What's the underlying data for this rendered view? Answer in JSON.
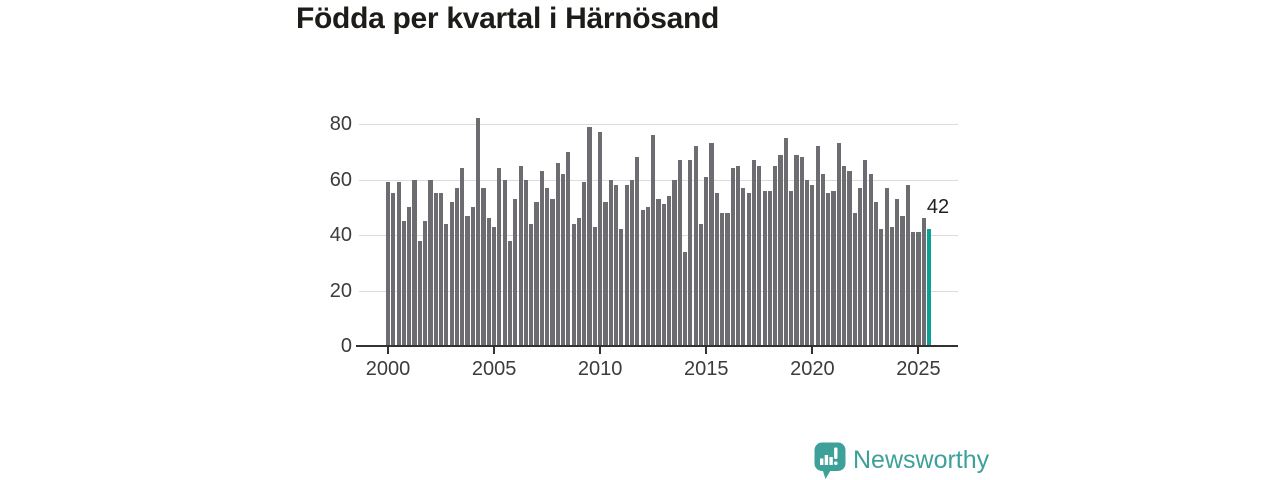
{
  "title": "Födda per kvartal i Härnösand",
  "logo": {
    "text": "Newsworthy",
    "icon": "newsworthy-speech-bubble-bar-chart-icon",
    "color": "#3da19a"
  },
  "colors": {
    "background": "#ffffff",
    "bar": "#6c6c71",
    "highlight": "#0aa296",
    "grid": "#dcdcdc",
    "axis": "#33322e",
    "tick_text": "#3c3c3c",
    "title_text": "#1d1c18"
  },
  "chart_data": {
    "type": "bar",
    "title": "Födda per kvartal i Härnösand",
    "x_range": "2000Q1–2025Q3",
    "frequency": "quarterly",
    "x_start_year": 2000,
    "x_start_quarter": 1,
    "values": [
      59,
      55,
      59,
      45,
      50,
      60,
      38,
      45,
      60,
      55,
      55,
      44,
      52,
      57,
      64,
      47,
      50,
      82,
      57,
      46,
      43,
      64,
      60,
      38,
      53,
      65,
      60,
      44,
      52,
      63,
      57,
      53,
      66,
      62,
      70,
      44,
      46,
      59,
      79,
      43,
      77,
      52,
      60,
      58,
      42,
      58,
      60,
      68,
      49,
      50,
      76,
      53,
      51,
      54,
      60,
      67,
      34,
      67,
      72,
      44,
      61,
      73,
      55,
      48,
      48,
      64,
      65,
      57,
      55,
      67,
      65,
      56,
      56,
      65,
      69,
      75,
      56,
      69,
      68,
      60,
      58,
      72,
      62,
      55,
      56,
      73,
      65,
      63,
      48,
      57,
      67,
      62,
      52,
      42,
      57,
      43,
      53,
      47,
      58,
      41,
      41,
      46,
      42
    ],
    "highlight_last": true,
    "last_value_label": "42",
    "yticks": [
      0,
      20,
      40,
      60,
      80
    ],
    "xticks": [
      2000,
      2005,
      2010,
      2015,
      2020,
      2025
    ],
    "ylim": [
      0,
      88
    ],
    "grid": true,
    "legend": false,
    "xlabel": "",
    "ylabel": ""
  }
}
